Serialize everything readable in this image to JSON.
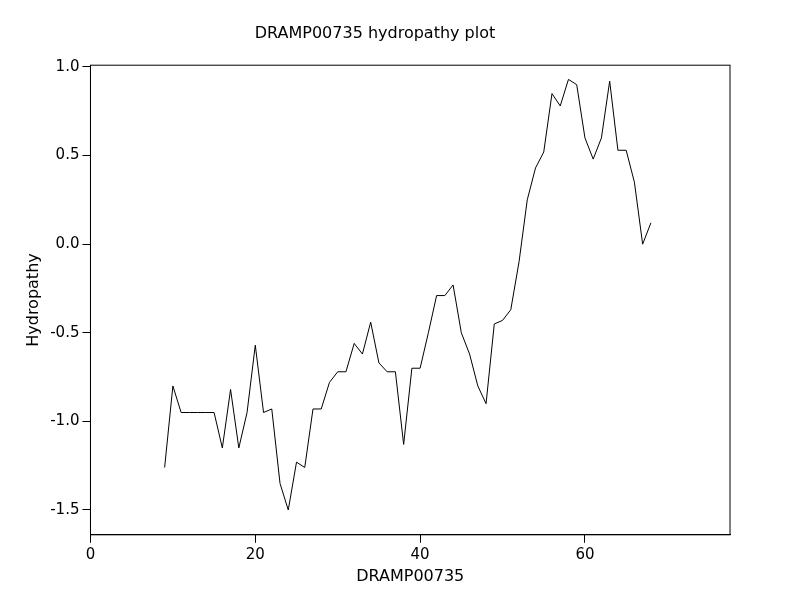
{
  "chart_data": {
    "type": "line",
    "title": "DRAMP00735 hydropathy plot",
    "x_label": "DRAMP00735",
    "y_label": "Hydropathy",
    "x": [
      9,
      10,
      11,
      12,
      13,
      14,
      15,
      16,
      17,
      18,
      19,
      20,
      21,
      22,
      23,
      24,
      25,
      26,
      27,
      28,
      29,
      30,
      31,
      32,
      33,
      34,
      35,
      36,
      37,
      38,
      39,
      40,
      41,
      42,
      43,
      44,
      45,
      46,
      47,
      48,
      49,
      50,
      51,
      52,
      53,
      54,
      55,
      56,
      57,
      58,
      59,
      60,
      61,
      62,
      63,
      64,
      65,
      66,
      67,
      68
    ],
    "values": [
      -1.26,
      -0.8,
      -0.95,
      -0.95,
      -0.95,
      -0.95,
      -0.95,
      -1.15,
      -0.82,
      -1.15,
      -0.95,
      -0.57,
      -0.95,
      -0.93,
      -1.35,
      -1.5,
      -1.23,
      -1.26,
      -0.93,
      -0.93,
      -0.78,
      -0.72,
      -0.72,
      -0.56,
      -0.62,
      -0.44,
      -0.67,
      -0.72,
      -0.72,
      -1.13,
      -0.7,
      -0.7,
      -0.5,
      -0.29,
      -0.29,
      -0.23,
      -0.5,
      -0.62,
      -0.8,
      -0.9,
      -0.45,
      -0.43,
      -0.37,
      -0.1,
      0.25,
      0.43,
      0.52,
      0.85,
      0.78,
      0.93,
      0.9,
      0.6,
      0.48,
      0.6,
      0.92,
      0.53,
      0.53,
      0.35,
      0.0,
      0.12
    ],
    "color": "#000000",
    "marker": "none",
    "xlim": [
      0,
      77.6
    ],
    "xticks": [
      0,
      20,
      40,
      60
    ],
    "ylim": [
      -1.64,
      1.01
    ],
    "yticks": [
      {
        "value": -1.5,
        "label": "-1.5"
      },
      {
        "value": -1.0,
        "label": "-1.0"
      },
      {
        "value": -0.5,
        "label": "-0.5"
      },
      {
        "value": 0.0,
        "label": "0.0"
      },
      {
        "value": 0.5,
        "label": "0.5"
      },
      {
        "value": 1.0,
        "label": "1.0"
      }
    ],
    "grid": false
  }
}
